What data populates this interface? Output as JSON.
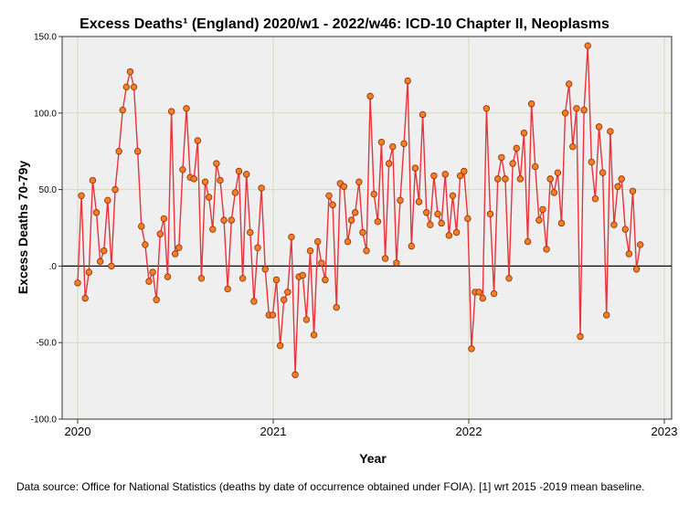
{
  "chart_data": {
    "type": "line",
    "title": "Excess Deaths¹ (England) 2020/w1 - 2022/w46: ICD-10 Chapter II, Neoplasms",
    "xlabel": "Year",
    "ylabel": "Excess Deaths 70-79y",
    "xlim": [
      2020,
      2023
    ],
    "ylim": [
      -100,
      150
    ],
    "grid": true,
    "reference_line": 0,
    "y_ticks": [
      {
        "value": -100,
        "label": "-100.0"
      },
      {
        "value": -50,
        "label": "-50.0"
      },
      {
        "value": 0,
        "label": ".0"
      },
      {
        "value": 50,
        "label": "50.0"
      },
      {
        "value": 100,
        "label": "100.0"
      },
      {
        "value": 150,
        "label": "150.0"
      }
    ],
    "x_ticks": [
      {
        "value": 2020,
        "label": "2020"
      },
      {
        "value": 2021,
        "label": "2021"
      },
      {
        "value": 2022,
        "label": "2022"
      },
      {
        "value": 2023,
        "label": "2023"
      }
    ],
    "colors": {
      "line": "#e8333a",
      "marker_fill": "#f58020",
      "marker_edge": "#8a2a0e",
      "plot_bg": "#efefef",
      "grid": "#d6d9b8"
    },
    "series": [
      {
        "name": "Excess deaths 70-79y",
        "x_start": 2020.0,
        "x_step": 0.01918,
        "values": [
          -11,
          46,
          -21,
          -4,
          56,
          35,
          3,
          10,
          43,
          0,
          50,
          75,
          102,
          117,
          127,
          117,
          75,
          26,
          14,
          -10,
          -4,
          -22,
          21,
          31,
          -7,
          101,
          8,
          12,
          63,
          103,
          58,
          57,
          82,
          -8,
          55,
          45,
          24,
          67,
          56,
          30,
          -15,
          30,
          48,
          62,
          -8,
          60,
          22,
          -23,
          12,
          51,
          -2,
          -32,
          -32,
          -9,
          -52,
          -22,
          -17,
          19,
          -71,
          -7,
          -6,
          -35,
          10,
          -45,
          16,
          2,
          -9,
          46,
          40,
          -27,
          54,
          52,
          16,
          30,
          35,
          55,
          22,
          10,
          111,
          47,
          29,
          81,
          5,
          67,
          78,
          2,
          43,
          80,
          121,
          13,
          64,
          42,
          99,
          35,
          27,
          59,
          34,
          28,
          60,
          20,
          46,
          22,
          59,
          62,
          31,
          -54,
          -17,
          -17,
          -21,
          103,
          34,
          -18,
          57,
          71,
          57,
          -8,
          67,
          77,
          57,
          87,
          16,
          106,
          65,
          30,
          37,
          11,
          57,
          48,
          61,
          28,
          100,
          119,
          78,
          103,
          -46,
          102,
          144,
          68,
          44,
          91,
          61,
          -32,
          88,
          27,
          52,
          57,
          24,
          8,
          49,
          -2,
          14
        ]
      }
    ]
  },
  "caption": "Data source: Office for National Statistics (deaths by date of occurrence obtained under FOIA). [1] wrt 2015 -2019 mean baseline."
}
